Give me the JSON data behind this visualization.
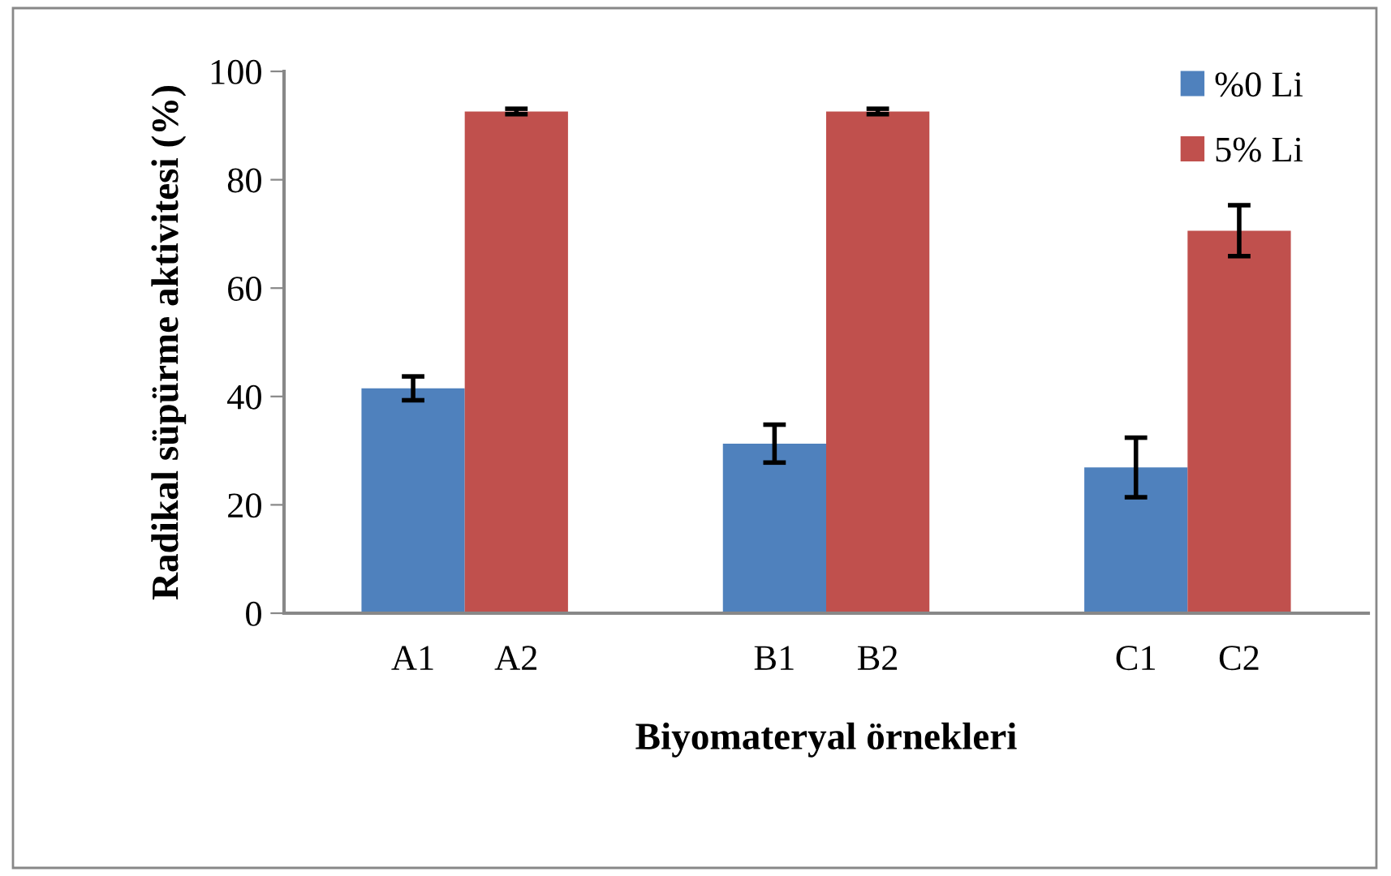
{
  "chart_data": {
    "type": "bar",
    "xlabel": "Biyomateryal örnekleri",
    "ylabel": "Radikal süpürme aktivitesi (%)",
    "categories": [
      "A1",
      "A2",
      "B1",
      "B2",
      "C1",
      "C2"
    ],
    "series": [
      {
        "name": "%0 Li",
        "color": "#4f81bd",
        "values": [
          41.5,
          null,
          31.3,
          null,
          26.9,
          null
        ],
        "errors": [
          2.2,
          null,
          3.5,
          null,
          5.5,
          null
        ]
      },
      {
        "name": "5% Li",
        "color": "#c0504d",
        "values": [
          null,
          92.6,
          null,
          92.6,
          null,
          70.6
        ],
        "errors": [
          null,
          0.5,
          null,
          0.5,
          null,
          4.7
        ]
      }
    ],
    "ylim": [
      0,
      100
    ],
    "yticks": [
      0,
      20,
      40,
      60,
      80,
      100
    ],
    "grid": false,
    "legend": "top right"
  }
}
